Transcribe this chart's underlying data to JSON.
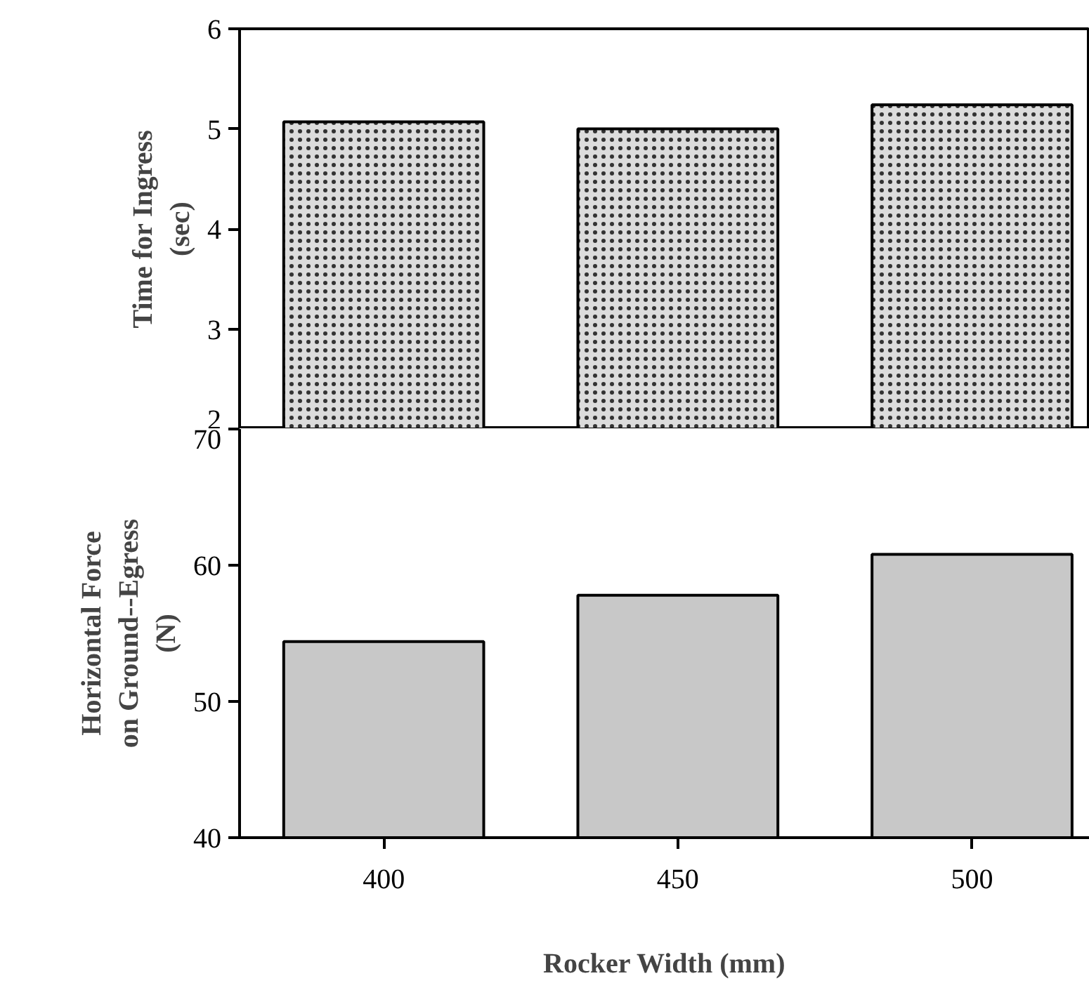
{
  "chart_data": [
    {
      "type": "bar",
      "ylabel": "Time for Ingress\n(sec)",
      "categories": [
        "400",
        "450",
        "500"
      ],
      "values": [
        5.07,
        5.0,
        5.24
      ],
      "color": "#dcdcdc",
      "ylim": [
        2,
        6
      ],
      "yticks": [
        2,
        3,
        4,
        5,
        6
      ],
      "grid": false,
      "tick_labels": "y"
    },
    {
      "type": "bar",
      "ylabel": "Horizontal Force\non Ground--Egress\n(N)",
      "xlabel": "Rocker Width (mm)",
      "categories": [
        "400",
        "450",
        "500"
      ],
      "values": [
        54.4,
        57.8,
        60.8
      ],
      "color": "#c8c8c8",
      "ylim": [
        40,
        70
      ],
      "yticks": [
        40,
        50,
        60,
        70
      ],
      "grid": false
    }
  ]
}
